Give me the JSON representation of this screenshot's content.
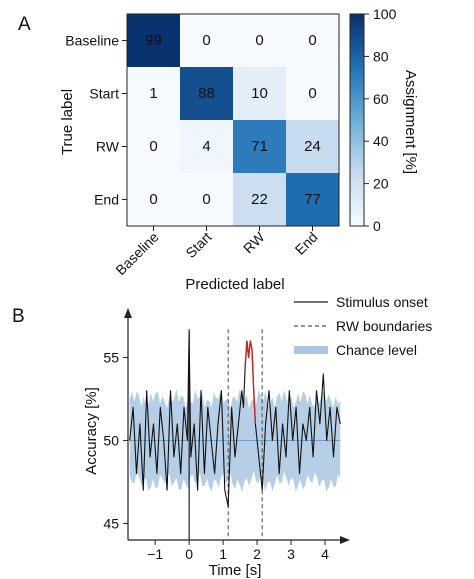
{
  "panels": {
    "a_label": "A",
    "b_label": "B"
  },
  "chart_data": [
    {
      "type": "heatmap",
      "title": "",
      "xlabel": "Predicted label",
      "ylabel": "True label",
      "x_categories": [
        "Baseline",
        "Start",
        "RW",
        "End"
      ],
      "y_categories": [
        "Baseline",
        "Start",
        "RW",
        "End"
      ],
      "values": [
        [
          99,
          0,
          0,
          0
        ],
        [
          1,
          88,
          10,
          0
        ],
        [
          0,
          4,
          71,
          24
        ],
        [
          0,
          0,
          22,
          77
        ]
      ],
      "colorbar": {
        "label": "Assignment [%]",
        "range": [
          0,
          100
        ],
        "ticks": [
          0,
          20,
          40,
          60,
          80,
          100
        ],
        "colormap": [
          "#f7fbff",
          "#c6dbef",
          "#6baed6",
          "#2171b5",
          "#08306b"
        ]
      }
    },
    {
      "type": "line",
      "title": "",
      "xlabel": "Time [s]",
      "ylabel": "Accuracy [%]",
      "xlim": [
        -1.8,
        4.5
      ],
      "ylim": [
        44,
        57.5
      ],
      "xticks": [
        -1,
        0,
        1,
        2,
        3,
        4
      ],
      "yticks": [
        45,
        50,
        55
      ],
      "legend_position": "top-right",
      "legend": [
        {
          "label": "Stimulus onset",
          "style": "solid",
          "color": "#222222"
        },
        {
          "label": "RW boundaries",
          "style": "dashed",
          "color": "#555555"
        },
        {
          "label": "Chance level",
          "style": "band",
          "color": "#a9c7e2"
        }
      ],
      "vlines": {
        "stimulus_onset": 0,
        "rw_boundaries": [
          1.15,
          2.15
        ]
      },
      "chance_band": {
        "center": 50,
        "lower": 47.5,
        "upper": 52.5
      },
      "significant_segment": {
        "x_range": [
          1.65,
          1.95
        ],
        "color": "#cc2222"
      },
      "series": [
        {
          "color": "#111111",
          "x": [
            -1.75,
            -1.65,
            -1.55,
            -1.45,
            -1.35,
            -1.25,
            -1.15,
            -1.05,
            -0.95,
            -0.85,
            -0.75,
            -0.65,
            -0.55,
            -0.45,
            -0.35,
            -0.25,
            -0.15,
            -0.05,
            0.0,
            0.05,
            0.15,
            0.25,
            0.35,
            0.45,
            0.55,
            0.65,
            0.75,
            0.85,
            0.95,
            1.05,
            1.15,
            1.25,
            1.35,
            1.45,
            1.55,
            1.6,
            1.65,
            1.7,
            1.75,
            1.8,
            1.85,
            1.9,
            1.95,
            2.05,
            2.15,
            2.25,
            2.35,
            2.45,
            2.55,
            2.65,
            2.75,
            2.85,
            2.95,
            3.05,
            3.15,
            3.25,
            3.35,
            3.45,
            3.55,
            3.65,
            3.75,
            3.85,
            3.95,
            4.05,
            4.15,
            4.25,
            4.35,
            4.45
          ],
          "y": [
            50,
            52,
            48,
            51,
            47,
            53,
            49,
            51,
            48,
            52,
            50,
            47,
            53,
            49,
            51,
            48,
            52,
            50,
            56.5,
            49,
            51,
            47,
            53,
            48,
            52,
            50,
            48,
            51,
            53,
            47,
            46,
            52,
            49,
            51,
            53,
            52,
            54.5,
            56,
            55,
            56,
            55.5,
            53,
            51,
            49,
            47,
            51,
            53,
            50,
            52,
            48,
            51,
            49,
            53,
            50,
            52,
            48,
            51,
            50,
            52,
            49,
            53,
            51,
            54,
            50,
            52,
            49,
            52,
            51
          ]
        }
      ]
    }
  ]
}
